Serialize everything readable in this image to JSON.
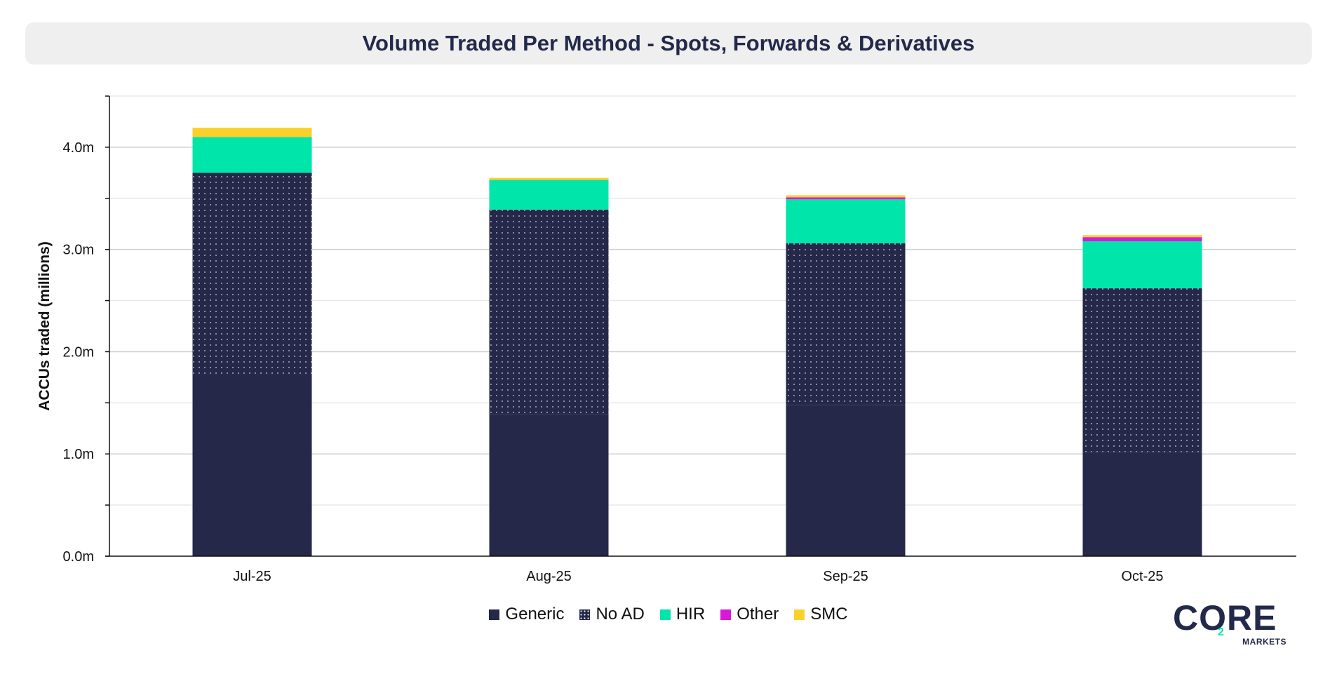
{
  "title": "Volume Traded Per Method - Spots, Forwards & Derivatives",
  "colors": {
    "Generic": "#252849",
    "No AD": "#252849",
    "HIR": "#00e5aa",
    "Other": "#d81ad6",
    "SMC": "#fcd02a"
  },
  "chart_data": {
    "type": "bar",
    "stacked": true,
    "categories": [
      "Jul-25",
      "Aug-25",
      "Sep-25",
      "Oct-25"
    ],
    "series": [
      {
        "name": "Generic",
        "values": [
          1.77,
          1.39,
          1.48,
          1.02
        ]
      },
      {
        "name": "No AD",
        "values": [
          1.98,
          2.0,
          1.58,
          1.6
        ]
      },
      {
        "name": "HIR",
        "values": [
          0.35,
          0.29,
          0.43,
          0.46
        ]
      },
      {
        "name": "Other",
        "values": [
          0.0,
          0.0,
          0.02,
          0.04
        ]
      },
      {
        "name": "SMC",
        "values": [
          0.09,
          0.02,
          0.02,
          0.02
        ]
      }
    ],
    "ylabel": "ACCUs traded (millions)",
    "xlabel": "",
    "ylim": [
      0,
      4.5
    ],
    "yticks": [
      "0.0m",
      "1.0m",
      "2.0m",
      "3.0m",
      "4.0m"
    ],
    "grid": true,
    "legend_position": "bottom"
  },
  "logo": {
    "word": "CORE",
    "subscript": "2",
    "tagline": "MARKETS"
  }
}
